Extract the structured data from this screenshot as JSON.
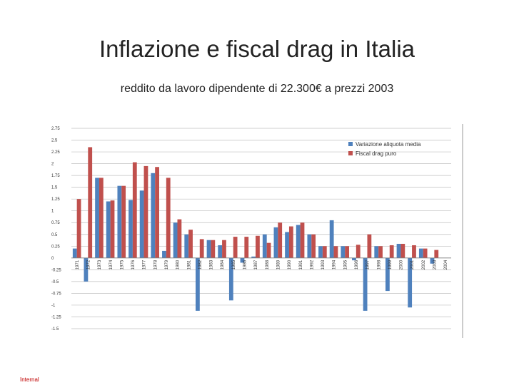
{
  "slide": {
    "title": "Inflazione e fiscal drag in Italia",
    "subtitle": "reddito da lavoro dipendente di 22.300€ a prezzi 2003",
    "footer": "Internal"
  },
  "colors": {
    "series_blue": "#4f81bd",
    "series_red": "#c0504d",
    "grid": "#bfbfbf",
    "axis": "#7f7f7f"
  },
  "chart_data": {
    "type": "bar",
    "title": "",
    "xlabel": "",
    "ylabel": "",
    "ylim": [
      -1.5,
      2.75
    ],
    "yticks": [
      2.75,
      2.5,
      2.25,
      2,
      1.75,
      1.5,
      1.25,
      1,
      0.75,
      0.5,
      0.25,
      0,
      -0.25,
      -0.5,
      -0.75,
      -1,
      -1.25,
      -1.5
    ],
    "yticklabels": [
      "2.75",
      "2.5",
      "2.25",
      "2",
      "1.75",
      "1.5",
      "1.25",
      "1",
      "0.75",
      "0.5",
      "0.25",
      "0",
      "-0.25",
      "-0.5",
      "-0.75",
      "-1",
      "-1.25",
      "-1.5"
    ],
    "grid": true,
    "legend_position": "top-right",
    "categories": [
      "1971",
      "1972",
      "1973",
      "1974",
      "1975",
      "1976",
      "1977",
      "1978",
      "1979",
      "1980",
      "1981",
      "1982",
      "1983",
      "1984",
      "1985",
      "1986",
      "1987",
      "1988",
      "1989",
      "1990",
      "1991",
      "1992",
      "1993",
      "1994",
      "1995",
      "1996",
      "1997",
      "1998",
      "1999",
      "2000",
      "2001",
      "2002",
      "2003",
      "2004"
    ],
    "series": [
      {
        "name": "Variazione aliquota media",
        "color": "#4f81bd",
        "values": [
          0.2,
          -0.5,
          1.7,
          1.2,
          1.53,
          1.23,
          1.43,
          1.8,
          0.15,
          0.75,
          0.5,
          -1.12,
          0.38,
          0.27,
          -0.9,
          -0.1,
          0.03,
          0.5,
          0.65,
          0.55,
          0.7,
          0.5,
          0.25,
          0.8,
          0.25,
          -0.05,
          -1.12,
          0.25,
          -0.7,
          0.3,
          -1.05,
          0.2,
          -0.12,
          null
        ]
      },
      {
        "name": "Fiscal drag puro",
        "color": "#c0504d",
        "values": [
          1.25,
          2.35,
          1.7,
          1.22,
          1.53,
          2.03,
          1.95,
          1.93,
          1.7,
          0.82,
          0.6,
          0.4,
          0.38,
          0.38,
          0.45,
          0.45,
          0.47,
          0.32,
          0.75,
          0.67,
          0.75,
          0.5,
          0.25,
          0.25,
          0.25,
          0.28,
          0.5,
          0.25,
          0.27,
          0.3,
          0.27,
          0.2,
          0.17,
          null
        ]
      }
    ]
  }
}
